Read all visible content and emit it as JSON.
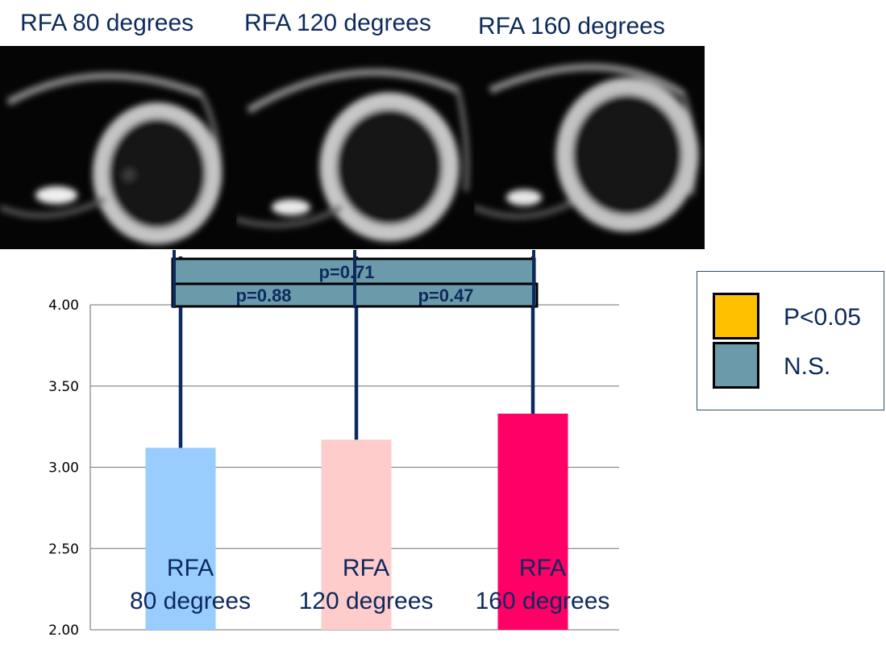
{
  "image_titles": [
    "RFA 80 degrees",
    "RFA 120 degrees",
    "RFA 160 degrees"
  ],
  "legend": [
    {
      "label": "P<0.05",
      "color": "#ffc000"
    },
    {
      "label": "N.S.",
      "color": "#6b9aab"
    }
  ],
  "chart_data": {
    "type": "bar",
    "categories": [
      "RFA\n80 degrees",
      "RFA\n120 degrees",
      "RFA\n160 degrees"
    ],
    "values": [
      3.12,
      3.17,
      3.33
    ],
    "error_upper": [
      4.0,
      4.0,
      4.0
    ],
    "bar_colors": [
      "#99ccff",
      "#ffcccc",
      "#ff0066"
    ],
    "ylim": [
      2.0,
      4.0
    ],
    "yticks": [
      "2.00",
      "2.50",
      "3.00",
      "3.50",
      "4.00"
    ],
    "ytick_values": [
      2.0,
      2.5,
      3.0,
      3.5,
      4.0
    ],
    "grid": true,
    "legend_position": "right",
    "significance": [
      {
        "from": 0,
        "to": 2,
        "label": "p=0.71",
        "result": "N.S."
      },
      {
        "from": 0,
        "to": 1,
        "label": "p=0.88",
        "result": "N.S."
      },
      {
        "from": 1,
        "to": 2,
        "label": "p=0.47",
        "result": "N.S."
      }
    ]
  }
}
